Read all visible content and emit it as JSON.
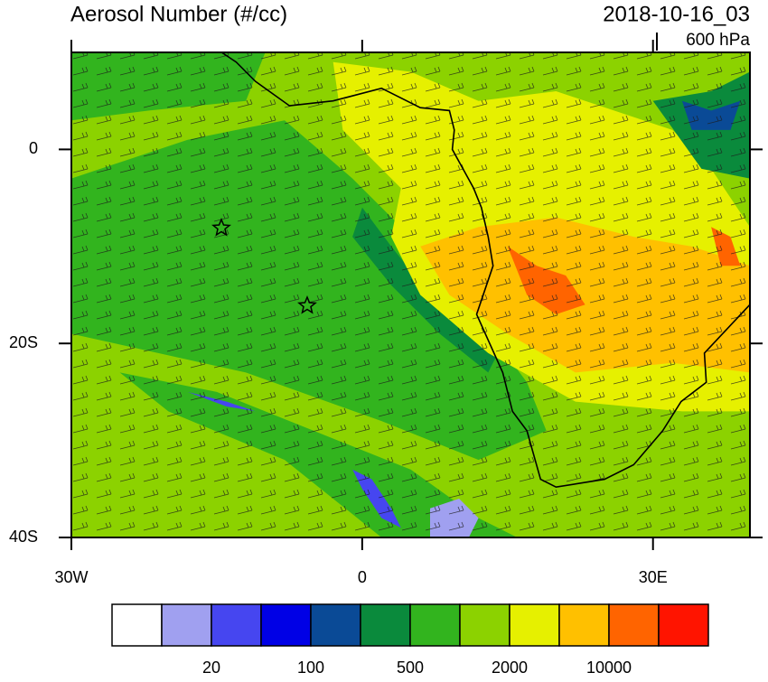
{
  "header": {
    "title": "Aerosol Number (#/cc)",
    "time": "2018-10-16_03",
    "level": "600 hPa"
  },
  "map": {
    "xlim": [
      -30,
      40
    ],
    "ylim": [
      -40,
      10
    ],
    "xticks": [
      {
        "value": -30,
        "label": "30W"
      },
      0,
      {
        "value": 30,
        "label": "30E"
      }
    ],
    "yticks": [
      0,
      {
        "value": -20,
        "label": "20S"
      },
      {
        "value": -40,
        "label": "40S"
      }
    ]
  },
  "colorbar": {
    "colors": [
      "#ffffff",
      "#a0a0f0",
      "#4646f0",
      "#0000e6",
      "#0a4a96",
      "#0a8a3c",
      "#32b41e",
      "#8cd200",
      "#e6f000",
      "#ffc000",
      "#ff6400",
      "#ff1400"
    ],
    "labels": [
      20,
      100,
      500,
      2000,
      10000
    ]
  }
}
